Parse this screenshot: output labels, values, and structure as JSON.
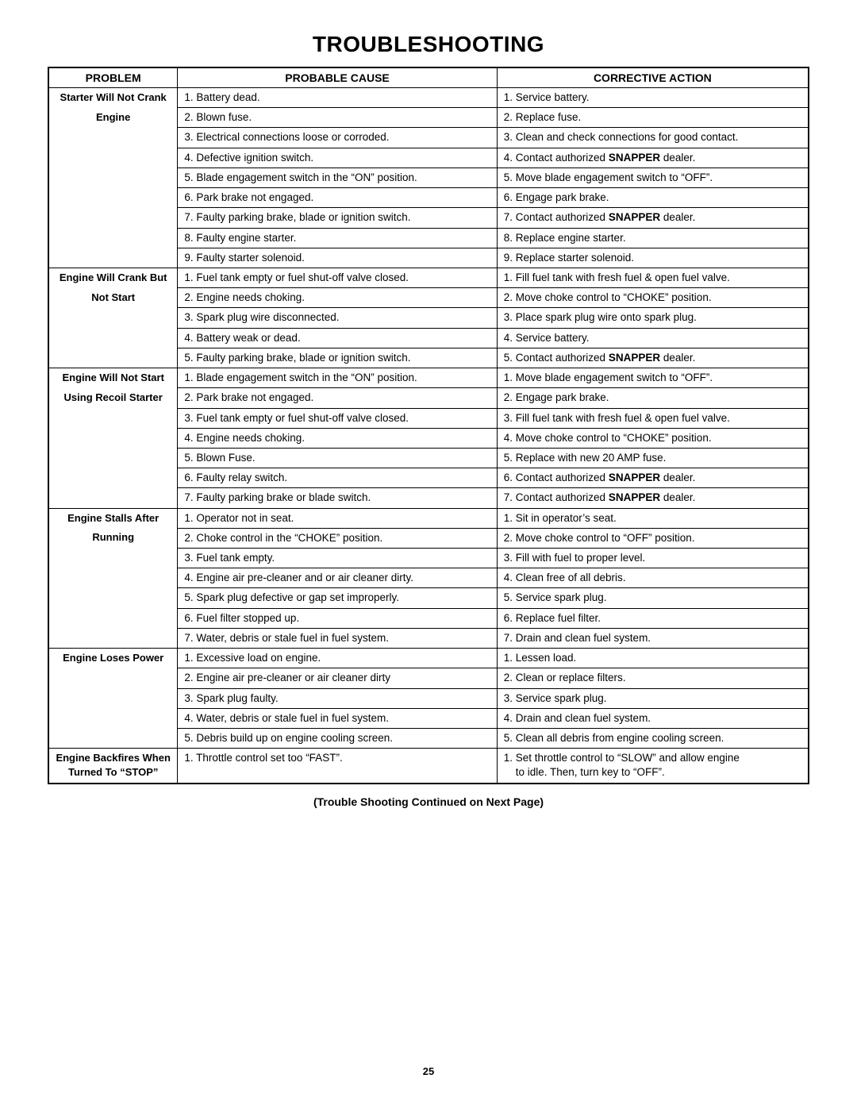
{
  "title": "TROUBLESHOOTING",
  "headers": {
    "problem": "PROBLEM",
    "cause": "PROBABLE CAUSE",
    "action": "CORRECTIVE ACTION"
  },
  "sections": [
    {
      "problem": [
        "Starter Will Not Crank",
        "Engine"
      ],
      "rows": [
        {
          "cause": "1. Battery dead.",
          "action": "1. Service battery."
        },
        {
          "cause": "2. Blown fuse.",
          "action": "2. Replace fuse."
        },
        {
          "cause": "3. Electrical connections loose or corroded.",
          "action": "3. Clean and check connections for good contact."
        },
        {
          "cause": "4. Defective ignition switch.",
          "action_pre": "4. Contact authorized ",
          "action_bold": "SNAPPER",
          "action_post": " dealer."
        },
        {
          "cause": "5. Blade engagement switch in the “ON” position.",
          "action": "5. Move blade engagement switch to “OFF”."
        },
        {
          "cause": "6. Park brake not engaged.",
          "action": "6. Engage park brake."
        },
        {
          "cause": "7. Faulty parking brake, blade or ignition switch.",
          "action_pre": "7. Contact authorized ",
          "action_bold": "SNAPPER",
          "action_post": " dealer."
        },
        {
          "cause": "8. Faulty engine starter.",
          "action": "8. Replace engine starter."
        },
        {
          "cause": "9. Faulty starter solenoid.",
          "action": "9. Replace starter solenoid."
        }
      ]
    },
    {
      "problem": [
        "Engine Will Crank But",
        "Not Start"
      ],
      "rows": [
        {
          "cause": "1. Fuel tank empty or fuel shut-off valve closed.",
          "action": "1. Fill fuel tank with fresh fuel & open fuel valve."
        },
        {
          "cause": "2. Engine needs choking.",
          "action": "2. Move choke control to “CHOKE” position."
        },
        {
          "cause": "3. Spark plug wire disconnected.",
          "action": "3. Place spark plug wire onto spark plug."
        },
        {
          "cause": "4. Battery weak or dead.",
          "action": "4. Service battery."
        },
        {
          "cause": "5. Faulty parking brake, blade or ignition switch.",
          "action_pre": "5. Contact authorized ",
          "action_bold": "SNAPPER",
          "action_post": " dealer."
        }
      ]
    },
    {
      "problem": [
        "Engine Will Not Start",
        "Using Recoil Starter"
      ],
      "rows": [
        {
          "cause": "1. Blade engagement switch in the “ON” position.",
          "action": "1. Move blade engagement switch to “OFF”."
        },
        {
          "cause": "2. Park brake not engaged.",
          "action": "2. Engage park brake."
        },
        {
          "cause": "3. Fuel tank empty or fuel shut-off valve closed.",
          "action": "3. Fill fuel tank with fresh fuel & open fuel valve."
        },
        {
          "cause": "4. Engine needs choking.",
          "action": "4. Move choke control to “CHOKE” position."
        },
        {
          "cause": "5. Blown Fuse.",
          "action": "5. Replace with new 20 AMP fuse."
        },
        {
          "cause": "6. Faulty relay switch.",
          "action_pre": "6. Contact authorized ",
          "action_bold": "SNAPPER",
          "action_post": " dealer."
        },
        {
          "cause": "7. Faulty parking brake or blade switch.",
          "action_pre": "7. Contact authorized ",
          "action_bold": "SNAPPER",
          "action_post": " dealer."
        }
      ]
    },
    {
      "problem": [
        "Engine Stalls After",
        "Running"
      ],
      "rows": [
        {
          "cause": "1. Operator not in seat.",
          "action": "1. Sit in operator’s seat."
        },
        {
          "cause": "2. Choke control in the “CHOKE” position.",
          "action": "2. Move choke control to “OFF” position."
        },
        {
          "cause": "3. Fuel tank empty.",
          "action": "3. Fill with fuel to proper level."
        },
        {
          "cause": "4. Engine air pre-cleaner and or air cleaner dirty.",
          "action": "4. Clean free of all debris."
        },
        {
          "cause": "5. Spark plug defective or gap set improperly.",
          "action": "5. Service spark plug."
        },
        {
          "cause": "6. Fuel filter stopped up.",
          "action": "6. Replace fuel filter."
        },
        {
          "cause": "7. Water, debris or stale fuel in fuel system.",
          "action": "7. Drain and clean fuel system."
        }
      ]
    },
    {
      "problem": [
        "Engine Loses Power"
      ],
      "rows": [
        {
          "cause": "1. Excessive load on engine.",
          "action": "1. Lessen load."
        },
        {
          "cause": "2. Engine air pre-cleaner or air cleaner dirty",
          "action": "2. Clean or replace filters."
        },
        {
          "cause": "3. Spark plug faulty.",
          "action": "3. Service spark plug."
        },
        {
          "cause": "4. Water, debris or stale fuel in fuel system.",
          "action": "4. Drain and clean fuel system."
        },
        {
          "cause": "5. Debris build up on engine cooling screen.",
          "action": "5. Clean all debris from engine cooling screen."
        }
      ]
    },
    {
      "problem": [
        "Engine Backfires When",
        "Turned To “STOP”"
      ],
      "problem_single_cell": true,
      "rows": [
        {
          "cause": "1. Throttle control set too “FAST”.",
          "action": "1. Set throttle control to “SLOW” and allow engine\n    to idle.  Then, turn key to “OFF”."
        }
      ]
    }
  ],
  "continued": "(Trouble Shooting Continued on Next Page)",
  "page_number": "25",
  "col_widths": {
    "problem": "17%",
    "cause": "42%",
    "action": "41%"
  }
}
